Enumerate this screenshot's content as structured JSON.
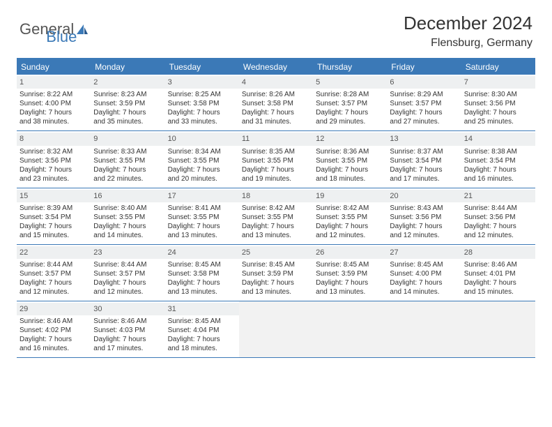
{
  "brand": {
    "part1": "General",
    "part2": "Blue"
  },
  "title": "December 2024",
  "location": "Flensburg, Germany",
  "colors": {
    "accent": "#3b79b7",
    "header_text": "#ffffff",
    "daynum_bg": "#eef0f1",
    "empty_bg": "#f2f2f2",
    "text": "#333333"
  },
  "daynames": [
    "Sunday",
    "Monday",
    "Tuesday",
    "Wednesday",
    "Thursday",
    "Friday",
    "Saturday"
  ],
  "weeks": [
    [
      {
        "n": "1",
        "sr": "Sunrise: 8:22 AM",
        "ss": "Sunset: 4:00 PM",
        "d1": "Daylight: 7 hours",
        "d2": "and 38 minutes."
      },
      {
        "n": "2",
        "sr": "Sunrise: 8:23 AM",
        "ss": "Sunset: 3:59 PM",
        "d1": "Daylight: 7 hours",
        "d2": "and 35 minutes."
      },
      {
        "n": "3",
        "sr": "Sunrise: 8:25 AM",
        "ss": "Sunset: 3:58 PM",
        "d1": "Daylight: 7 hours",
        "d2": "and 33 minutes."
      },
      {
        "n": "4",
        "sr": "Sunrise: 8:26 AM",
        "ss": "Sunset: 3:58 PM",
        "d1": "Daylight: 7 hours",
        "d2": "and 31 minutes."
      },
      {
        "n": "5",
        "sr": "Sunrise: 8:28 AM",
        "ss": "Sunset: 3:57 PM",
        "d1": "Daylight: 7 hours",
        "d2": "and 29 minutes."
      },
      {
        "n": "6",
        "sr": "Sunrise: 8:29 AM",
        "ss": "Sunset: 3:57 PM",
        "d1": "Daylight: 7 hours",
        "d2": "and 27 minutes."
      },
      {
        "n": "7",
        "sr": "Sunrise: 8:30 AM",
        "ss": "Sunset: 3:56 PM",
        "d1": "Daylight: 7 hours",
        "d2": "and 25 minutes."
      }
    ],
    [
      {
        "n": "8",
        "sr": "Sunrise: 8:32 AM",
        "ss": "Sunset: 3:56 PM",
        "d1": "Daylight: 7 hours",
        "d2": "and 23 minutes."
      },
      {
        "n": "9",
        "sr": "Sunrise: 8:33 AM",
        "ss": "Sunset: 3:55 PM",
        "d1": "Daylight: 7 hours",
        "d2": "and 22 minutes."
      },
      {
        "n": "10",
        "sr": "Sunrise: 8:34 AM",
        "ss": "Sunset: 3:55 PM",
        "d1": "Daylight: 7 hours",
        "d2": "and 20 minutes."
      },
      {
        "n": "11",
        "sr": "Sunrise: 8:35 AM",
        "ss": "Sunset: 3:55 PM",
        "d1": "Daylight: 7 hours",
        "d2": "and 19 minutes."
      },
      {
        "n": "12",
        "sr": "Sunrise: 8:36 AM",
        "ss": "Sunset: 3:55 PM",
        "d1": "Daylight: 7 hours",
        "d2": "and 18 minutes."
      },
      {
        "n": "13",
        "sr": "Sunrise: 8:37 AM",
        "ss": "Sunset: 3:54 PM",
        "d1": "Daylight: 7 hours",
        "d2": "and 17 minutes."
      },
      {
        "n": "14",
        "sr": "Sunrise: 8:38 AM",
        "ss": "Sunset: 3:54 PM",
        "d1": "Daylight: 7 hours",
        "d2": "and 16 minutes."
      }
    ],
    [
      {
        "n": "15",
        "sr": "Sunrise: 8:39 AM",
        "ss": "Sunset: 3:54 PM",
        "d1": "Daylight: 7 hours",
        "d2": "and 15 minutes."
      },
      {
        "n": "16",
        "sr": "Sunrise: 8:40 AM",
        "ss": "Sunset: 3:55 PM",
        "d1": "Daylight: 7 hours",
        "d2": "and 14 minutes."
      },
      {
        "n": "17",
        "sr": "Sunrise: 8:41 AM",
        "ss": "Sunset: 3:55 PM",
        "d1": "Daylight: 7 hours",
        "d2": "and 13 minutes."
      },
      {
        "n": "18",
        "sr": "Sunrise: 8:42 AM",
        "ss": "Sunset: 3:55 PM",
        "d1": "Daylight: 7 hours",
        "d2": "and 13 minutes."
      },
      {
        "n": "19",
        "sr": "Sunrise: 8:42 AM",
        "ss": "Sunset: 3:55 PM",
        "d1": "Daylight: 7 hours",
        "d2": "and 12 minutes."
      },
      {
        "n": "20",
        "sr": "Sunrise: 8:43 AM",
        "ss": "Sunset: 3:56 PM",
        "d1": "Daylight: 7 hours",
        "d2": "and 12 minutes."
      },
      {
        "n": "21",
        "sr": "Sunrise: 8:44 AM",
        "ss": "Sunset: 3:56 PM",
        "d1": "Daylight: 7 hours",
        "d2": "and 12 minutes."
      }
    ],
    [
      {
        "n": "22",
        "sr": "Sunrise: 8:44 AM",
        "ss": "Sunset: 3:57 PM",
        "d1": "Daylight: 7 hours",
        "d2": "and 12 minutes."
      },
      {
        "n": "23",
        "sr": "Sunrise: 8:44 AM",
        "ss": "Sunset: 3:57 PM",
        "d1": "Daylight: 7 hours",
        "d2": "and 12 minutes."
      },
      {
        "n": "24",
        "sr": "Sunrise: 8:45 AM",
        "ss": "Sunset: 3:58 PM",
        "d1": "Daylight: 7 hours",
        "d2": "and 13 minutes."
      },
      {
        "n": "25",
        "sr": "Sunrise: 8:45 AM",
        "ss": "Sunset: 3:59 PM",
        "d1": "Daylight: 7 hours",
        "d2": "and 13 minutes."
      },
      {
        "n": "26",
        "sr": "Sunrise: 8:45 AM",
        "ss": "Sunset: 3:59 PM",
        "d1": "Daylight: 7 hours",
        "d2": "and 13 minutes."
      },
      {
        "n": "27",
        "sr": "Sunrise: 8:45 AM",
        "ss": "Sunset: 4:00 PM",
        "d1": "Daylight: 7 hours",
        "d2": "and 14 minutes."
      },
      {
        "n": "28",
        "sr": "Sunrise: 8:46 AM",
        "ss": "Sunset: 4:01 PM",
        "d1": "Daylight: 7 hours",
        "d2": "and 15 minutes."
      }
    ],
    [
      {
        "n": "29",
        "sr": "Sunrise: 8:46 AM",
        "ss": "Sunset: 4:02 PM",
        "d1": "Daylight: 7 hours",
        "d2": "and 16 minutes."
      },
      {
        "n": "30",
        "sr": "Sunrise: 8:46 AM",
        "ss": "Sunset: 4:03 PM",
        "d1": "Daylight: 7 hours",
        "d2": "and 17 minutes."
      },
      {
        "n": "31",
        "sr": "Sunrise: 8:45 AM",
        "ss": "Sunset: 4:04 PM",
        "d1": "Daylight: 7 hours",
        "d2": "and 18 minutes."
      },
      null,
      null,
      null,
      null
    ]
  ]
}
